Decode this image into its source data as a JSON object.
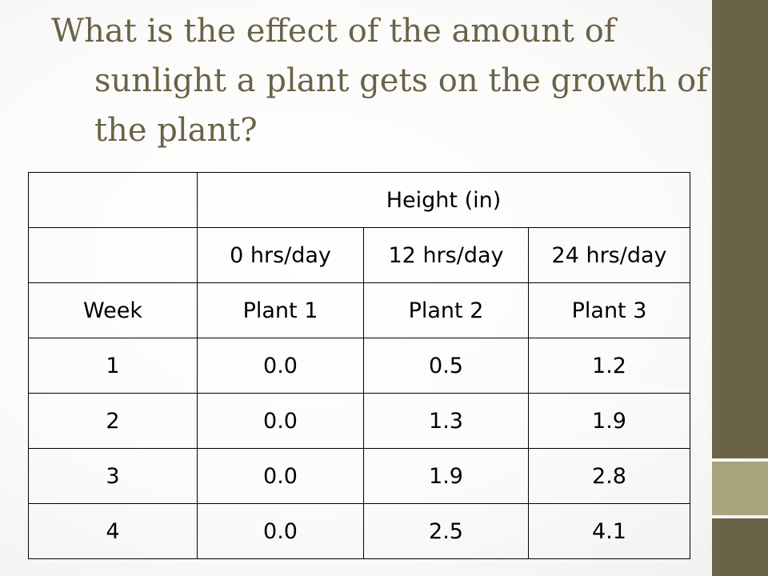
{
  "title": "What is the effect of the amount of sunlight a plant gets on the growth of the plant?",
  "colors": {
    "title": "#6b6347",
    "accent_dark": "#6b6347",
    "accent_light": "#a8a57e"
  },
  "table": {
    "header_top": {
      "corner": "",
      "group_label": "Height (in)"
    },
    "header_hours": {
      "corner": "",
      "values": [
        "0 hrs/day",
        "12 hrs/day",
        "24 hrs/day"
      ]
    },
    "header_labels": [
      "Week",
      "Plant 1",
      "Plant 2",
      "Plant 3"
    ],
    "rows": [
      [
        "1",
        "0.0",
        "0.5",
        "1.2"
      ],
      [
        "2",
        "0.0",
        "1.3",
        "1.9"
      ],
      [
        "3",
        "0.0",
        "1.9",
        "2.8"
      ],
      [
        "4",
        "0.0",
        "2.5",
        "4.1"
      ]
    ]
  }
}
